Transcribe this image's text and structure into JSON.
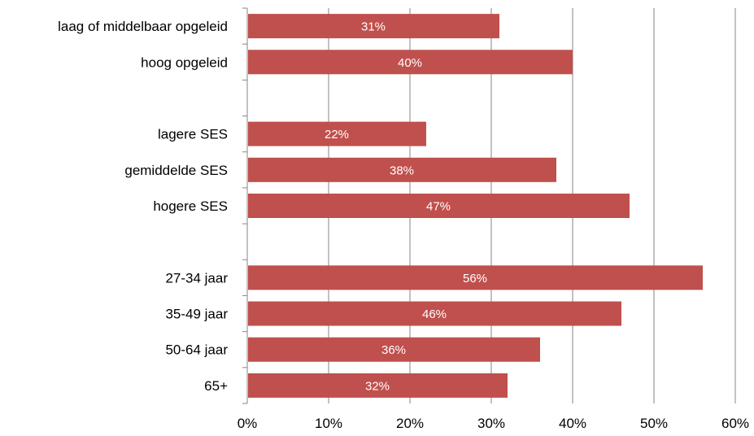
{
  "chart_data": {
    "type": "bar",
    "orientation": "horizontal",
    "categories": [
      "laag of middelbaar opgeleid",
      "hoog opgeleid",
      "",
      "lagere SES",
      "gemiddelde SES",
      "hogere SES",
      "",
      "27-34 jaar",
      "35-49 jaar",
      "50-64 jaar",
      "65+"
    ],
    "values": [
      31,
      40,
      null,
      22,
      38,
      47,
      null,
      56,
      46,
      36,
      32
    ],
    "data_labels": [
      "31%",
      "40%",
      "",
      "22%",
      "38%",
      "47%",
      "",
      "56%",
      "46%",
      "36%",
      "32%"
    ],
    "xlim": [
      0,
      60
    ],
    "x_ticks": [
      0,
      10,
      20,
      30,
      40,
      50,
      60
    ],
    "x_tick_labels": [
      "0%",
      "10%",
      "20%",
      "30%",
      "40%",
      "50%",
      "60%"
    ],
    "bar_color": "#c0504d",
    "grid": true,
    "legend": "none",
    "title": "",
    "xlabel": "",
    "ylabel": ""
  }
}
